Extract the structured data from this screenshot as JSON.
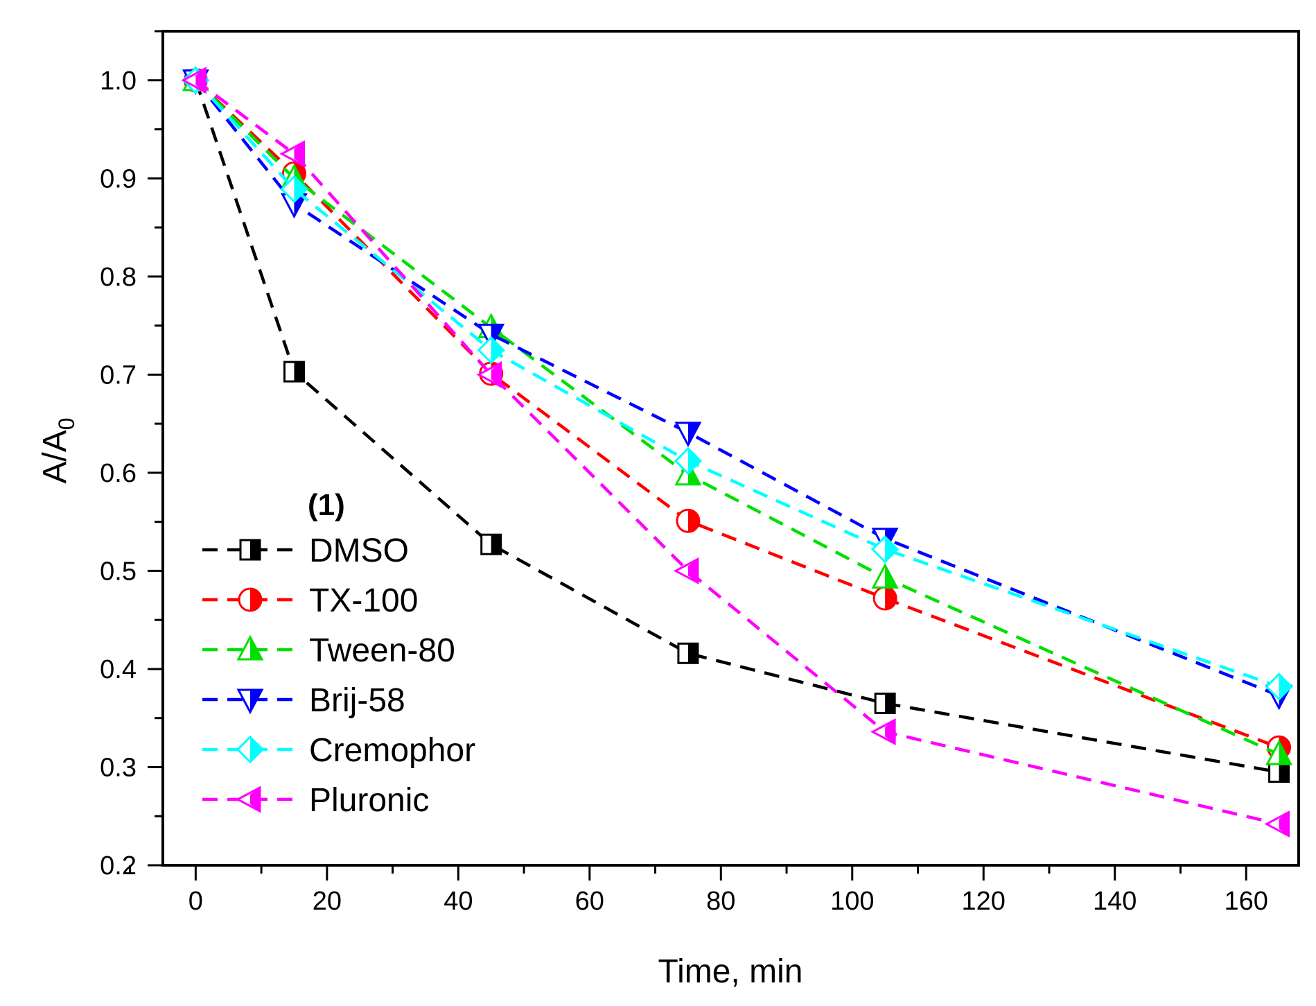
{
  "chart_data": {
    "type": "line",
    "xlabel": "Time, min",
    "ylabel_main": "A/A",
    "ylabel_sub": "0",
    "xlim": [
      -5,
      168
    ],
    "ylim": [
      0.2,
      1.05
    ],
    "xticks": [
      0,
      20,
      40,
      60,
      80,
      100,
      120,
      140,
      160
    ],
    "xtick_labels": [
      "0",
      "20",
      "40",
      "60",
      "80",
      "100",
      "120",
      "140",
      "160"
    ],
    "yticks": [
      0.2,
      0.3,
      0.4,
      0.5,
      0.6,
      0.7,
      0.8,
      0.9,
      1.0
    ],
    "ytick_labels": [
      "0.2",
      "0.3",
      "0.4",
      "0.5",
      "0.6",
      "0.7",
      "0.8",
      "0.9",
      "1.0"
    ],
    "legend_title": "(1)",
    "legend_position": "bottom-left",
    "x": [
      0,
      15,
      45,
      75,
      105,
      165
    ],
    "series": [
      {
        "name": "DMSO",
        "color": "#000000",
        "marker": "square-half",
        "values": [
          1.0,
          0.703,
          0.527,
          0.416,
          0.365,
          0.295
        ]
      },
      {
        "name": "TX-100",
        "color": "#ff0000",
        "marker": "circle-half",
        "values": [
          1.0,
          0.905,
          0.701,
          0.551,
          0.472,
          0.32
        ]
      },
      {
        "name": "Tween-80",
        "color": "#00e000",
        "marker": "triangle-up",
        "values": [
          1.0,
          0.9,
          0.748,
          0.598,
          0.493,
          0.313
        ]
      },
      {
        "name": "Brij-58",
        "color": "#0000ff",
        "marker": "triangle-down",
        "values": [
          1.0,
          0.874,
          0.741,
          0.641,
          0.533,
          0.373
        ]
      },
      {
        "name": "Cremophor",
        "color": "#00ffff",
        "marker": "diamond",
        "values": [
          1.0,
          0.889,
          0.725,
          0.612,
          0.522,
          0.382
        ]
      },
      {
        "name": "Pluronic",
        "color": "#ff00ff",
        "marker": "triangle-left",
        "values": [
          1.0,
          0.925,
          0.7,
          0.5,
          0.336,
          0.242
        ]
      }
    ]
  }
}
